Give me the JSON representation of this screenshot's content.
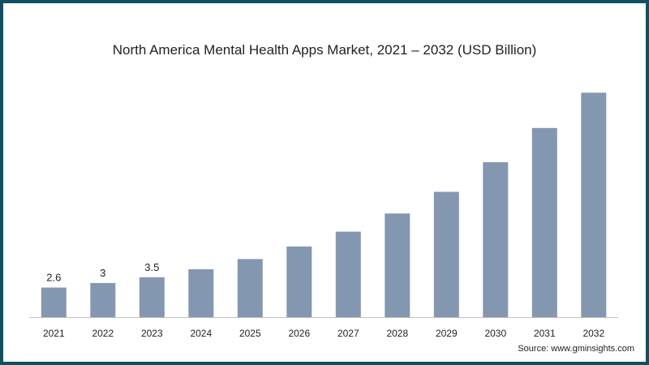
{
  "chart_data": {
    "type": "bar",
    "title": "North America Mental Health Apps Market, 2021 – 2032 (USD Billion)",
    "xlabel": "",
    "ylabel": "",
    "categories": [
      "2021",
      "2022",
      "2023",
      "2024",
      "2025",
      "2026",
      "2027",
      "2028",
      "2029",
      "2030",
      "2031",
      "2032"
    ],
    "values": [
      2.6,
      3.0,
      3.5,
      4.2,
      5.1,
      6.2,
      7.5,
      9.1,
      11.0,
      13.6,
      16.6,
      19.7
    ],
    "data_labels": [
      "2.6",
      "3",
      "3.5",
      null,
      null,
      null,
      null,
      null,
      null,
      null,
      null,
      null
    ],
    "ylim": [
      0,
      21
    ],
    "grid": false,
    "legend": "none",
    "bar_color": "#8497b0",
    "axis_color": "#bfbfbf"
  },
  "source": "Source: www.gminsights.com",
  "colors": {
    "border": "#0f5161"
  }
}
